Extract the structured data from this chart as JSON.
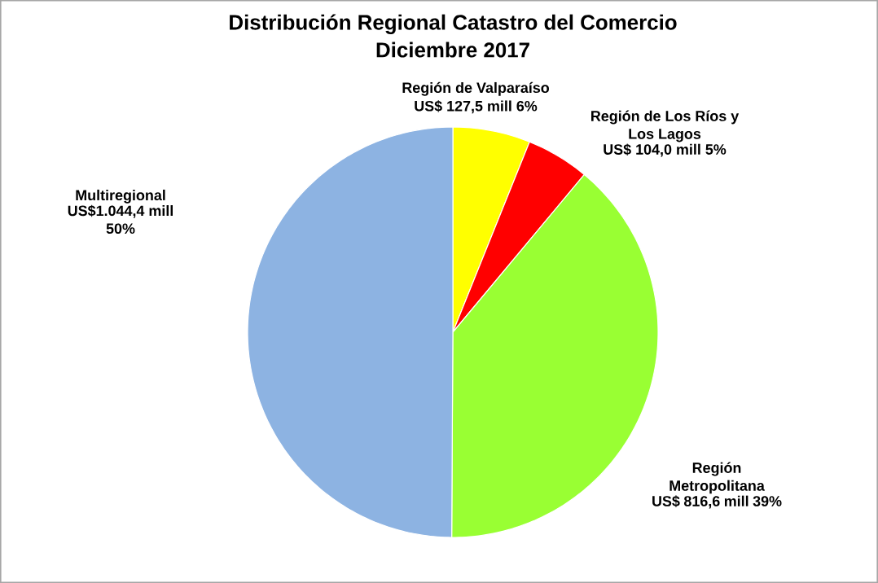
{
  "chart_data": {
    "type": "pie",
    "title": "Distribución Regional Catastro del Comercio",
    "subtitle": "Diciembre 2017",
    "categories": [
      "Región de Valparaíso",
      "Región de Los Ríos y Los Lagos",
      "Región Metropolitana",
      "Multiregional"
    ],
    "values": [
      127.5,
      104.0,
      816.6,
      1044.4
    ],
    "value_labels": [
      "US$ 127,5 mill 6%",
      "US$ 104,0 mill 5%",
      "US$ 816,6 mill 39%",
      "US$1.044,4 mill 50%"
    ],
    "colors": [
      "#ffff00",
      "#ff0000",
      "#99ff33",
      "#8db3e2"
    ]
  }
}
